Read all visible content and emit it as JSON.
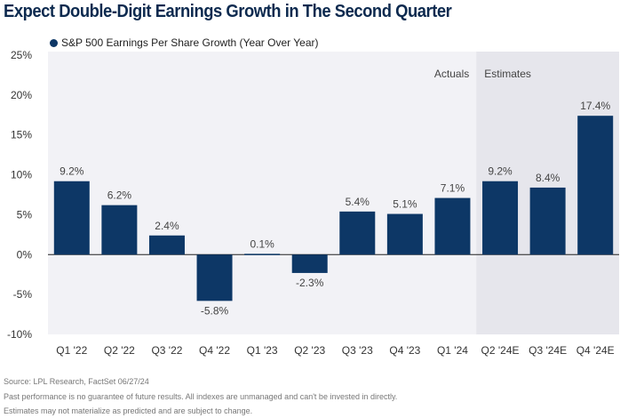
{
  "chart_data": {
    "type": "bar",
    "title": "Expect Double-Digit Earnings Growth in The Second Quarter",
    "categories": [
      "Q1 '22",
      "Q2 '22",
      "Q3 '22",
      "Q4 '22",
      "Q1 '23",
      "Q2 '23",
      "Q3 '23",
      "Q4 '23",
      "Q1 '24",
      "Q2 '24E",
      "Q3 '24E",
      "Q4 '24E"
    ],
    "series": [
      {
        "name": "S&P 500 Earnings Per Share Growth (Year Over Year)",
        "values": [
          9.2,
          6.2,
          2.4,
          -5.8,
          0.1,
          -2.3,
          5.4,
          5.1,
          7.1,
          9.2,
          8.4,
          17.4
        ]
      }
    ],
    "data_labels": [
      "9.2%",
      "6.2%",
      "2.4%",
      "-5.8%",
      "0.1%",
      "-2.3%",
      "5.4%",
      "5.1%",
      "7.1%",
      "9.2%",
      "8.4%",
      "17.4%"
    ],
    "yticks": [
      "25%",
      "20%",
      "15%",
      "10%",
      "5%",
      "0%",
      "-5%",
      "-10%"
    ],
    "ylim": [
      -10,
      25
    ],
    "grid": false,
    "legend": "top-left",
    "regions": [
      {
        "label": "Actuals"
      },
      {
        "label": "Estimates",
        "start": "Q2 '24E"
      }
    ],
    "colors": {
      "bar": "#0d3766",
      "plot_bg": "#f2f2f6",
      "estimates_bg": "#e6e6ec"
    }
  },
  "footnotes": [
    "Source: LPL Research, FactSet 06/27/24",
    "Past performance is no guarantee of future results. All indexes are unmanaged and can't be invested in directly.",
    "Estimates may not materialize as predicted and are subject to change."
  ]
}
